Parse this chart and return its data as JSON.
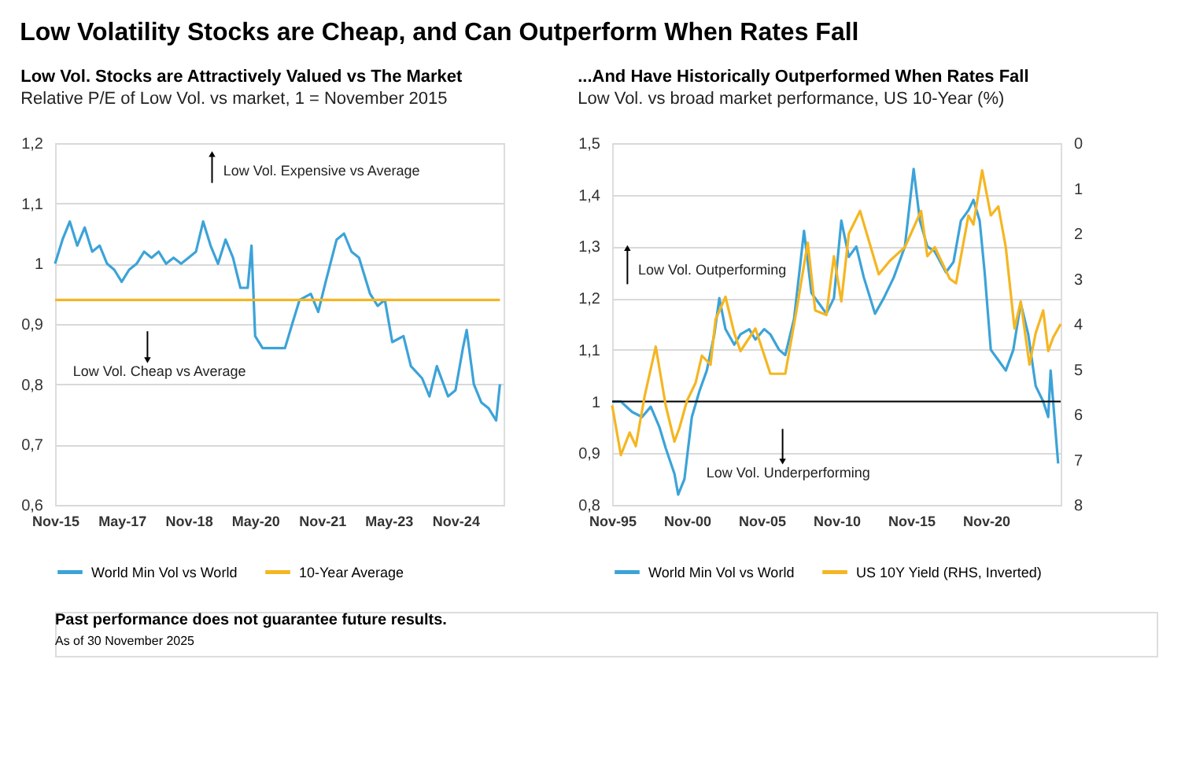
{
  "chart_data": [
    {
      "type": "line",
      "title": "Low Vol. Stocks are Attractively Valued vs The Market",
      "subtitle": "Relative P/E of Low Vol. vs market, 1 = November 2015",
      "xlim": [
        "2015-11",
        "2025-12"
      ],
      "xticks": [
        {
          "value": "2015-11",
          "label": "Nov-15"
        },
        {
          "value": "2017-05",
          "label": "May-17"
        },
        {
          "value": "2018-11",
          "label": "Nov-18"
        },
        {
          "value": "2020-05",
          "label": "May-20"
        },
        {
          "value": "2021-11",
          "label": "Nov-21"
        },
        {
          "value": "2023-05",
          "label": "May-23"
        },
        {
          "value": "2024-11",
          "label": "Nov-24"
        }
      ],
      "ylim": [
        0.6,
        1.2
      ],
      "yticks": [
        {
          "value": 0.6,
          "label": "0,6"
        },
        {
          "value": 0.7,
          "label": "0,7"
        },
        {
          "value": 0.8,
          "label": "0,8"
        },
        {
          "value": 0.9,
          "label": "0,9"
        },
        1,
        {
          "value": 1.1,
          "label": "1,1"
        },
        {
          "value": 1.2,
          "label": "1,2"
        }
      ],
      "grid": "y",
      "legend": "bottom",
      "annotations": [
        "Low Vol. Expensive vs Average",
        "Low Vol. Cheap vs Average"
      ],
      "series": [
        {
          "name": "World Min Vol vs World",
          "color": "#3ca3d8",
          "x": [
            "2015-11",
            "2016-01",
            "2016-03",
            "2016-05",
            "2016-07",
            "2016-09",
            "2016-11",
            "2017-01",
            "2017-03",
            "2017-05",
            "2017-07",
            "2017-09",
            "2017-11",
            "2018-01",
            "2018-03",
            "2018-05",
            "2018-07",
            "2018-09",
            "2018-11",
            "2019-01",
            "2019-03",
            "2019-05",
            "2019-07",
            "2019-09",
            "2019-11",
            "2020-01",
            "2020-03",
            "2020-04",
            "2020-05",
            "2020-07",
            "2020-10",
            "2021-01",
            "2021-03",
            "2021-05",
            "2021-08",
            "2021-10",
            "2021-12",
            "2022-03",
            "2022-05",
            "2022-07",
            "2022-09",
            "2022-12",
            "2023-02",
            "2023-04",
            "2023-06",
            "2023-09",
            "2023-11",
            "2024-02",
            "2024-04",
            "2024-06",
            "2024-09",
            "2024-11",
            "2025-01",
            "2025-02",
            "2025-04",
            "2025-06",
            "2025-08",
            "2025-10",
            "2025-11"
          ],
          "values": [
            1.0,
            1.04,
            1.07,
            1.03,
            1.06,
            1.02,
            1.03,
            1.0,
            0.99,
            0.97,
            0.99,
            1.0,
            1.02,
            1.01,
            1.02,
            1.0,
            1.01,
            1.0,
            1.01,
            1.02,
            1.07,
            1.03,
            1.0,
            1.04,
            1.01,
            0.96,
            0.96,
            1.03,
            0.88,
            0.86,
            0.86,
            0.86,
            0.9,
            0.94,
            0.95,
            0.92,
            0.97,
            1.04,
            1.05,
            1.02,
            1.01,
            0.95,
            0.93,
            0.94,
            0.87,
            0.88,
            0.83,
            0.81,
            0.78,
            0.83,
            0.78,
            0.79,
            0.86,
            0.89,
            0.8,
            0.77,
            0.76,
            0.74,
            0.8
          ]
        },
        {
          "name": "10-Year Average",
          "color": "#f5b622",
          "x": [
            "2015-11",
            "2025-11"
          ],
          "values": [
            0.94,
            0.94
          ]
        }
      ]
    },
    {
      "type": "line",
      "title": "...And Have Historically Outperformed When Rates Fall",
      "subtitle": "Low Vol. vs broad market performance, US 10-Year (%)",
      "xlim": [
        "1995-11",
        "2025-11"
      ],
      "xticks": [
        {
          "value": "1995-11",
          "label": "Nov-95"
        },
        {
          "value": "2000-11",
          "label": "Nov-00"
        },
        {
          "value": "2005-11",
          "label": "Nov-05"
        },
        {
          "value": "2010-11",
          "label": "Nov-10"
        },
        {
          "value": "2015-11",
          "label": "Nov-15"
        },
        {
          "value": "2020-11",
          "label": "Nov-20"
        }
      ],
      "ylim": [
        0.8,
        1.5
      ],
      "yticks": [
        {
          "value": 0.8,
          "label": "0,8"
        },
        {
          "value": 0.9,
          "label": "0,9"
        },
        1,
        {
          "value": 1.1,
          "label": "1,1"
        },
        {
          "value": 1.2,
          "label": "1,2"
        },
        {
          "value": 1.3,
          "label": "1,3"
        },
        {
          "value": 1.4,
          "label": "1,4"
        },
        {
          "value": 1.5,
          "label": "1,5"
        }
      ],
      "y2lim": [
        8,
        0
      ],
      "y2ticks": [
        0,
        1,
        2,
        3,
        4,
        5,
        6,
        7,
        8
      ],
      "grid": "y",
      "legend": "bottom",
      "ref_lines": [
        {
          "axis": "y",
          "value": 1,
          "color": "#000000"
        }
      ],
      "annotations": [
        "Low Vol. Outperforming",
        "Low Vol. Underperforming"
      ],
      "series": [
        {
          "name": "World Min Vol vs World",
          "color": "#3ca3d8",
          "x": [
            "1995-11",
            "1996-06",
            "1997-03",
            "1997-11",
            "1998-06",
            "1999-01",
            "1999-06",
            "2000-01",
            "2000-04",
            "2000-09",
            "2001-03",
            "2001-09",
            "2002-03",
            "2002-09",
            "2003-01",
            "2003-06",
            "2004-01",
            "2004-06",
            "2005-01",
            "2005-06",
            "2006-01",
            "2006-06",
            "2007-01",
            "2007-06",
            "2008-01",
            "2008-09",
            "2009-03",
            "2009-09",
            "2010-03",
            "2010-09",
            "2011-03",
            "2011-09",
            "2012-03",
            "2012-09",
            "2013-06",
            "2014-01",
            "2014-09",
            "2015-06",
            "2016-01",
            "2016-06",
            "2016-12",
            "2017-06",
            "2018-03",
            "2018-09",
            "2019-03",
            "2019-09",
            "2020-01",
            "2020-06",
            "2020-10",
            "2021-03",
            "2021-09",
            "2022-03",
            "2022-09",
            "2023-03",
            "2023-09",
            "2024-03",
            "2024-09",
            "2025-01",
            "2025-03",
            "2025-07",
            "2025-09"
          ],
          "values": [
            1.0,
            1.0,
            0.98,
            0.97,
            0.99,
            0.95,
            0.91,
            0.86,
            0.82,
            0.85,
            0.97,
            1.02,
            1.06,
            1.13,
            1.2,
            1.14,
            1.11,
            1.13,
            1.14,
            1.12,
            1.14,
            1.13,
            1.1,
            1.09,
            1.16,
            1.33,
            1.21,
            1.19,
            1.17,
            1.2,
            1.35,
            1.28,
            1.3,
            1.24,
            1.17,
            1.2,
            1.24,
            1.3,
            1.45,
            1.35,
            1.3,
            1.29,
            1.25,
            1.27,
            1.35,
            1.37,
            1.39,
            1.35,
            1.25,
            1.1,
            1.08,
            1.06,
            1.1,
            1.19,
            1.13,
            1.03,
            1.0,
            0.97,
            1.06,
            0.94,
            0.88
          ]
        },
        {
          "name": "US 10Y Yield (RHS, Inverted)",
          "color": "#f5b622",
          "axis": "y2",
          "x": [
            "1995-11",
            "1996-06",
            "1997-01",
            "1997-06",
            "1998-01",
            "1998-10",
            "1999-06",
            "2000-01",
            "2000-05",
            "2000-11",
            "2001-06",
            "2001-11",
            "2002-06",
            "2002-10",
            "2003-06",
            "2004-01",
            "2004-06",
            "2005-06",
            "2006-06",
            "2007-06",
            "2008-03",
            "2008-12",
            "2009-06",
            "2010-03",
            "2010-09",
            "2011-03",
            "2011-09",
            "2012-06",
            "2013-09",
            "2014-06",
            "2015-06",
            "2016-07",
            "2016-12",
            "2017-06",
            "2018-06",
            "2018-11",
            "2019-09",
            "2020-01",
            "2020-08",
            "2021-03",
            "2021-09",
            "2022-03",
            "2022-10",
            "2023-03",
            "2023-10",
            "2024-03",
            "2024-09",
            "2025-01",
            "2025-05",
            "2025-11"
          ],
          "values": [
            5.8,
            6.9,
            6.4,
            6.7,
            5.6,
            4.5,
            5.8,
            6.6,
            6.3,
            5.7,
            5.3,
            4.7,
            4.9,
            3.9,
            3.4,
            4.2,
            4.6,
            4.1,
            5.1,
            5.1,
            3.7,
            2.2,
            3.7,
            3.8,
            2.5,
            3.5,
            2.0,
            1.5,
            2.9,
            2.6,
            2.3,
            1.5,
            2.5,
            2.3,
            3.0,
            3.1,
            1.6,
            1.8,
            0.6,
            1.6,
            1.4,
            2.3,
            4.1,
            3.5,
            4.9,
            4.2,
            3.7,
            4.6,
            4.3,
            4.0
          ]
        }
      ]
    },
    {
      "type": "other",
      "title": "Low Volatility Stocks are Cheap, and Can Outperform When Rates Fall",
      "annotations": [
        "Past performance does not guarantee future results.",
        "As of 30 November 2025"
      ]
    }
  ]
}
